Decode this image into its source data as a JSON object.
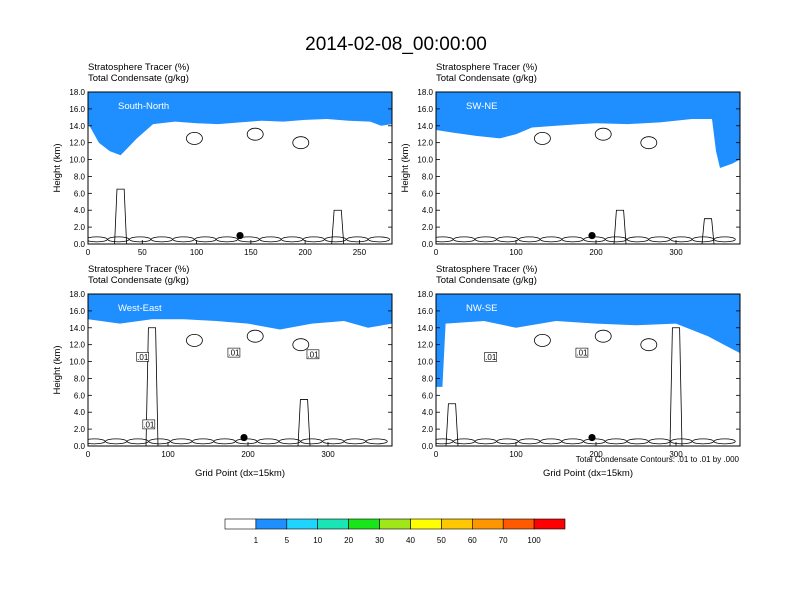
{
  "title": "2014-02-08_00:00:00",
  "footer_note": "Total Condensate Contours: .01 to .01 by .000",
  "colorbar": {
    "levels": [
      "1",
      "5",
      "10",
      "20",
      "30",
      "40",
      "50",
      "60",
      "70",
      "100"
    ],
    "colors": [
      "#ffffff",
      "#1f8fff",
      "#1fd4ff",
      "#19e6b4",
      "#19e619",
      "#a0e619",
      "#ffff00",
      "#ffc800",
      "#ff9600",
      "#ff5a00",
      "#ff0000"
    ]
  },
  "chart_data": [
    {
      "type": "heatmap",
      "header_line1": "Stratosphere Tracer   (%)",
      "header_line2": "Total Condensate   (g/kg)",
      "section_label": "South-North",
      "ylabel": "Height (km)",
      "xlabel": "",
      "yticks": [
        "0.0",
        "2.0",
        "4.0",
        "6.0",
        "8.0",
        "10.0",
        "12.0",
        "14.0",
        "16.0",
        "18.0"
      ],
      "xticks": [
        "0",
        "50",
        "100",
        "150",
        "200",
        "250"
      ],
      "xlim": [
        0,
        280
      ],
      "ylim": [
        0,
        18
      ],
      "tracer_edge_km": [
        [
          0,
          14.3
        ],
        [
          10,
          12.0
        ],
        [
          20,
          11.0
        ],
        [
          30,
          10.5
        ],
        [
          45,
          12.5
        ],
        [
          60,
          14.2
        ],
        [
          80,
          14.5
        ],
        [
          100,
          14.3
        ],
        [
          120,
          14.2
        ],
        [
          140,
          14.4
        ],
        [
          160,
          14.6
        ],
        [
          180,
          14.5
        ],
        [
          200,
          14.7
        ],
        [
          220,
          14.8
        ],
        [
          240,
          14.6
        ],
        [
          260,
          14.5
        ],
        [
          270,
          14.0
        ],
        [
          280,
          14.2
        ]
      ],
      "station_x": 140
    },
    {
      "type": "heatmap",
      "header_line1": "Stratosphere Tracer   (%)",
      "header_line2": "Total Condensate   (g/kg)",
      "section_label": "SW-NE",
      "ylabel": "Height (km)",
      "xlabel": "",
      "yticks": [
        "0.0",
        "2.0",
        "4.0",
        "6.0",
        "8.0",
        "10.0",
        "12.0",
        "14.0",
        "16.0",
        "18.0"
      ],
      "xticks": [
        "0",
        "100",
        "200",
        "300"
      ],
      "xlim": [
        0,
        380
      ],
      "ylim": [
        0,
        18
      ],
      "tracer_edge_km": [
        [
          0,
          13.5
        ],
        [
          20,
          13.2
        ],
        [
          50,
          12.8
        ],
        [
          80,
          12.5
        ],
        [
          100,
          13.0
        ],
        [
          120,
          13.8
        ],
        [
          150,
          14.0
        ],
        [
          180,
          14.2
        ],
        [
          200,
          14.3
        ],
        [
          240,
          14.2
        ],
        [
          280,
          14.4
        ],
        [
          320,
          14.8
        ],
        [
          345,
          14.8
        ],
        [
          350,
          11.0
        ],
        [
          355,
          9.0
        ],
        [
          370,
          9.5
        ],
        [
          380,
          10.0
        ]
      ],
      "station_x": 195
    },
    {
      "type": "heatmap",
      "header_line1": "Stratosphere Tracer   (%)",
      "header_line2": "Total Condensate   (g/kg)",
      "section_label": "West-East",
      "ylabel": "Height (km)",
      "xlabel": "Grid Point (dx=15km)",
      "yticks": [
        "0.0",
        "2.0",
        "4.0",
        "6.0",
        "8.0",
        "10.0",
        "12.0",
        "14.0",
        "16.0",
        "18.0"
      ],
      "xticks": [
        "0",
        "100",
        "200",
        "300"
      ],
      "xlim": [
        0,
        380
      ],
      "ylim": [
        0,
        18
      ],
      "contour_labels": [
        ".01",
        ".01",
        ".01",
        ".01"
      ],
      "tracer_edge_km": [
        [
          0,
          15.0
        ],
        [
          40,
          14.5
        ],
        [
          80,
          15.0
        ],
        [
          120,
          15.0
        ],
        [
          160,
          14.8
        ],
        [
          200,
          14.5
        ],
        [
          240,
          13.8
        ],
        [
          280,
          14.5
        ],
        [
          320,
          14.8
        ],
        [
          350,
          14.0
        ],
        [
          380,
          14.5
        ]
      ],
      "station_x": 195
    },
    {
      "type": "heatmap",
      "header_line1": "Stratosphere Tracer   (%)",
      "header_line2": "Total Condensate   (g/kg)",
      "section_label": "NW-SE",
      "ylabel": "",
      "xlabel": "Grid Point (dx=15km)",
      "yticks": [
        "0.0",
        "2.0",
        "4.0",
        "6.0",
        "8.0",
        "10.0",
        "12.0",
        "14.0",
        "16.0",
        "18.0"
      ],
      "xticks": [
        "0",
        "100",
        "200",
        "300"
      ],
      "xlim": [
        0,
        380
      ],
      "ylim": [
        0,
        18
      ],
      "contour_labels": [
        ".01",
        ".01"
      ],
      "tracer_edge_km": [
        [
          0,
          7.0
        ],
        [
          8,
          7.0
        ],
        [
          12,
          14.5
        ],
        [
          60,
          14.8
        ],
        [
          100,
          14.0
        ],
        [
          150,
          14.8
        ],
        [
          200,
          14.5
        ],
        [
          250,
          14.3
        ],
        [
          300,
          14.5
        ],
        [
          340,
          13.0
        ],
        [
          360,
          12.0
        ],
        [
          380,
          11.0
        ]
      ],
      "station_x": 195
    }
  ]
}
